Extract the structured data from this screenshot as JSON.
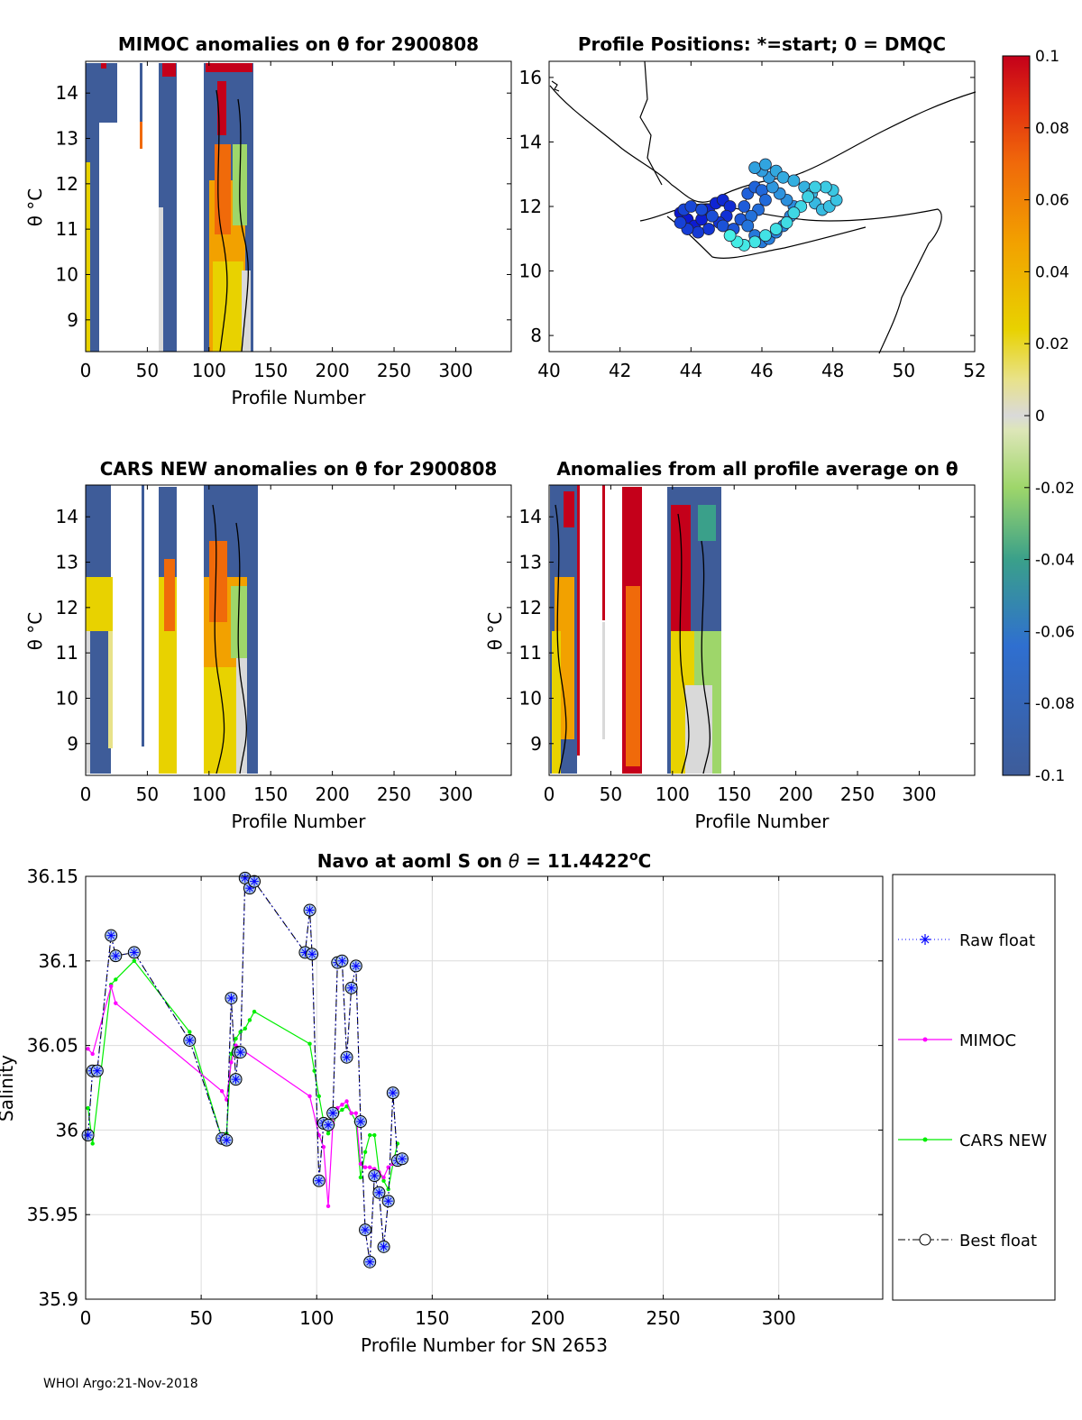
{
  "footer": "WHOI Argo:21-Nov-2018",
  "colorbar": {
    "ticks": [
      "0.1",
      "0.08",
      "0.06",
      "0.04",
      "0.02",
      "0",
      "-0.02",
      "-0.04",
      "-0.06",
      "-0.08",
      "-0.1"
    ]
  },
  "chart_data": [
    {
      "type": "heatmap",
      "title": "MIMOC anomalies on θ  for 2900808",
      "xlabel": "Profile Number",
      "ylabel": "θ °C",
      "xlim": [
        0,
        345
      ],
      "ylim": [
        8.3,
        14.7
      ],
      "xticks": [
        "0",
        "50",
        "100",
        "150",
        "200",
        "250",
        "300"
      ],
      "yticks": [
        "9",
        "10",
        "11",
        "12",
        "13",
        "14"
      ]
    },
    {
      "type": "scatter",
      "title": "Profile Positions: *=start; 0 = DMQC",
      "xlim": [
        40,
        52
      ],
      "ylim": [
        7.5,
        16.5
      ],
      "xticks": [
        "40",
        "42",
        "44",
        "46",
        "48",
        "50",
        "52"
      ],
      "yticks": [
        "8",
        "10",
        "12",
        "14",
        "16"
      ],
      "positions": [
        [
          43.7,
          11.8
        ],
        [
          43.9,
          11.6
        ],
        [
          44.1,
          11.4
        ],
        [
          44.3,
          11.6
        ],
        [
          44.5,
          11.9
        ],
        [
          44.7,
          12.1
        ],
        [
          44.9,
          12.2
        ],
        [
          45.1,
          12.0
        ],
        [
          45.0,
          11.7
        ],
        [
          44.8,
          11.5
        ],
        [
          44.5,
          11.3
        ],
        [
          44.2,
          11.2
        ],
        [
          43.9,
          11.3
        ],
        [
          43.7,
          11.5
        ],
        [
          43.8,
          11.9
        ],
        [
          44.0,
          12.0
        ],
        [
          44.3,
          11.9
        ],
        [
          44.6,
          11.7
        ],
        [
          44.9,
          11.4
        ],
        [
          45.2,
          11.3
        ],
        [
          45.4,
          11.6
        ],
        [
          45.5,
          12.0
        ],
        [
          45.6,
          12.4
        ],
        [
          45.8,
          12.6
        ],
        [
          46.0,
          12.5
        ],
        [
          46.1,
          12.2
        ],
        [
          45.9,
          11.9
        ],
        [
          45.7,
          11.7
        ],
        [
          45.6,
          11.4
        ],
        [
          45.8,
          11.1
        ],
        [
          46.0,
          10.9
        ],
        [
          46.2,
          11.0
        ],
        [
          46.4,
          11.2
        ],
        [
          46.6,
          11.4
        ],
        [
          46.8,
          11.7
        ],
        [
          46.9,
          12.0
        ],
        [
          46.7,
          12.2
        ],
        [
          46.5,
          12.4
        ],
        [
          46.3,
          12.6
        ],
        [
          46.2,
          12.9
        ],
        [
          46.0,
          13.1
        ],
        [
          45.8,
          13.2
        ],
        [
          46.1,
          13.3
        ],
        [
          46.4,
          13.1
        ],
        [
          46.6,
          12.9
        ],
        [
          46.9,
          12.8
        ],
        [
          47.2,
          12.6
        ],
        [
          47.4,
          12.4
        ],
        [
          47.5,
          12.1
        ],
        [
          47.7,
          11.9
        ],
        [
          47.9,
          12.0
        ],
        [
          48.1,
          12.2
        ],
        [
          48.0,
          12.5
        ],
        [
          47.8,
          12.6
        ],
        [
          47.5,
          12.6
        ],
        [
          47.3,
          12.3
        ],
        [
          47.1,
          12.0
        ],
        [
          46.9,
          11.8
        ],
        [
          46.7,
          11.5
        ],
        [
          46.4,
          11.3
        ],
        [
          46.1,
          11.1
        ],
        [
          45.8,
          10.9
        ],
        [
          45.5,
          10.8
        ],
        [
          45.3,
          10.9
        ],
        [
          45.1,
          11.1
        ]
      ]
    },
    {
      "type": "heatmap",
      "title": "CARS NEW anomalies on θ for 2900808",
      "xlabel": "Profile Number",
      "ylabel": "θ °C",
      "xlim": [
        0,
        345
      ],
      "ylim": [
        8.3,
        14.7
      ],
      "xticks": [
        "0",
        "50",
        "100",
        "150",
        "200",
        "250",
        "300"
      ],
      "yticks": [
        "9",
        "10",
        "11",
        "12",
        "13",
        "14"
      ]
    },
    {
      "type": "heatmap",
      "title": "Anomalies from all profile average on θ",
      "xlabel": "Profile Number",
      "ylabel": "θ °C",
      "xlim": [
        0,
        345
      ],
      "ylim": [
        8.3,
        14.7
      ],
      "xticks": [
        "0",
        "50",
        "100",
        "150",
        "200",
        "250",
        "300"
      ],
      "yticks": [
        "9",
        "10",
        "11",
        "12",
        "13",
        "14"
      ]
    },
    {
      "type": "line",
      "title": "Navo at aoml S on θ = 11.4422°C",
      "title_parts": {
        "prefix": "Navo at aoml S on ",
        "theta": "θ",
        "middle": " = 11.4422",
        "sup": "o",
        "suffix": "C"
      },
      "xlabel": "Profile Number for SN 2653",
      "ylabel": "Salinity",
      "xlim": [
        0,
        345
      ],
      "ylim": [
        35.9,
        36.15
      ],
      "xticks": [
        "0",
        "50",
        "100",
        "150",
        "200",
        "250",
        "300"
      ],
      "yticks": [
        "35.9",
        "35.95",
        "36",
        "36.05",
        "36.1",
        "36.15"
      ],
      "legend": [
        "Raw float",
        "MIMOC",
        "CARS NEW",
        "Best float"
      ],
      "series": [
        {
          "name": "Raw float",
          "color": "#0000ff",
          "x": [
            1,
            3,
            5,
            11,
            13,
            21,
            45,
            59,
            61,
            63,
            65,
            66,
            67,
            69,
            71,
            73,
            95,
            97,
            98,
            101,
            103,
            105,
            107,
            109,
            111,
            113,
            115,
            117,
            119,
            121,
            123,
            125,
            127,
            129,
            131,
            133,
            135,
            137
          ],
          "y": [
            35.997,
            36.035,
            36.035,
            36.115,
            36.103,
            36.105,
            36.053,
            35.995,
            35.994,
            36.078,
            36.03,
            36.046,
            36.046,
            36.149,
            36.143,
            36.147,
            36.105,
            36.13,
            36.104,
            35.97,
            36.004,
            36.003,
            36.01,
            36.099,
            36.1,
            36.043,
            36.084,
            36.097,
            36.005,
            35.941,
            35.922,
            35.973,
            35.963,
            35.931,
            35.958,
            36.022,
            35.982,
            35.983
          ]
        },
        {
          "name": "MIMOC",
          "color": "#ff00ff",
          "x": [
            1,
            3,
            11,
            13,
            59,
            61,
            63,
            65,
            97,
            101,
            103,
            105,
            107,
            109,
            111,
            113,
            115,
            117,
            119,
            121,
            123,
            125,
            127,
            129,
            131,
            133
          ],
          "y": [
            36.048,
            36.045,
            36.085,
            36.075,
            36.023,
            36.018,
            36.04,
            36.05,
            36.02,
            35.997,
            35.99,
            35.955,
            36.004,
            36.013,
            36.015,
            36.017,
            36.01,
            36.01,
            35.98,
            35.978,
            35.978,
            35.977,
            35.975,
            35.972,
            35.978,
            35.98
          ]
        },
        {
          "name": "CARS NEW",
          "color": "#00ee00",
          "x": [
            1,
            3,
            11,
            13,
            21,
            45,
            59,
            61,
            63,
            65,
            67,
            69,
            71,
            73,
            97,
            99,
            101,
            103,
            105,
            107,
            109,
            111,
            113,
            115,
            117,
            119,
            121,
            123,
            125,
            127,
            129,
            131,
            133,
            135
          ],
          "y": [
            36.013,
            35.992,
            36.086,
            36.089,
            36.1,
            36.058,
            35.995,
            35.998,
            36.045,
            36.054,
            36.058,
            36.06,
            36.065,
            36.07,
            36.051,
            36.035,
            36.02,
            36.005,
            35.998,
            36.003,
            36.01,
            36.012,
            36.014,
            36.01,
            36.005,
            35.972,
            35.987,
            35.997,
            35.997,
            35.975,
            35.97,
            35.965,
            35.98,
            35.992
          ]
        },
        {
          "name": "Best float",
          "color": "#000000",
          "x": [
            1,
            3,
            5,
            11,
            13,
            21,
            45,
            59,
            61,
            63,
            65,
            66,
            67,
            69,
            71,
            73,
            95,
            97,
            98,
            101,
            103,
            105,
            107,
            109,
            111,
            113,
            115,
            117,
            119,
            121,
            123,
            125,
            127,
            129,
            131,
            133,
            135,
            137
          ],
          "y": [
            35.997,
            36.035,
            36.035,
            36.115,
            36.103,
            36.105,
            36.053,
            35.995,
            35.994,
            36.078,
            36.03,
            36.046,
            36.046,
            36.149,
            36.143,
            36.147,
            36.105,
            36.13,
            36.104,
            35.97,
            36.004,
            36.003,
            36.01,
            36.099,
            36.1,
            36.043,
            36.084,
            36.097,
            36.005,
            35.941,
            35.922,
            35.973,
            35.963,
            35.931,
            35.958,
            36.022,
            35.982,
            35.983
          ]
        }
      ]
    }
  ]
}
